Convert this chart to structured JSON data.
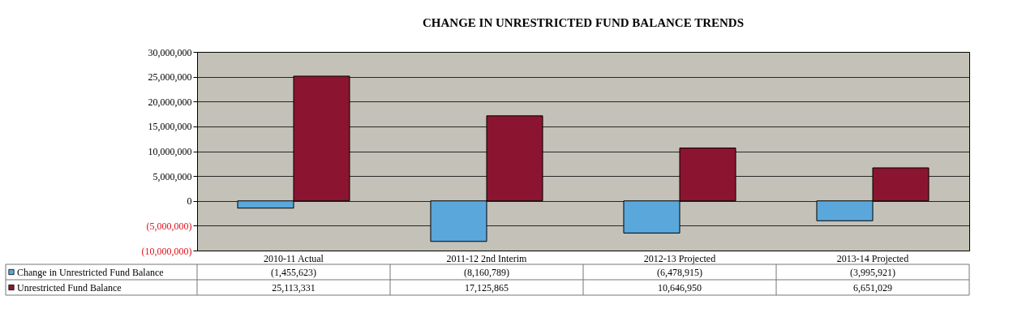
{
  "chart_data": {
    "type": "bar",
    "title": "CHANGE IN UNRESTRICTED FUND BALANCE TRENDS",
    "categories": [
      "2010-11 Actual",
      "2011-12 2nd Interim",
      "2012-13 Projected",
      "2013-14 Projected"
    ],
    "series": [
      {
        "name": "Change in Unrestricted Fund Balance",
        "color": "#5aa7dc",
        "values": [
          -1455623,
          -8160789,
          -6478915,
          -3995921
        ],
        "value_labels": [
          "(1,455,623)",
          "(8,160,789)",
          "(6,478,915)",
          "(3,995,921)"
        ]
      },
      {
        "name": "Unrestricted Fund Balance",
        "color": "#8b1530",
        "values": [
          25113331,
          17125865,
          10646950,
          6651029
        ],
        "value_labels": [
          "25,113,331",
          "17,125,865",
          "10,646,950",
          "6,651,029"
        ]
      }
    ],
    "ylim": [
      -10000000,
      30000000
    ],
    "yticks": [
      {
        "value": -10000000,
        "label": "(10,000,000)"
      },
      {
        "value": -5000000,
        "label": "(5,000,000)"
      },
      0,
      {
        "value": 5000000,
        "label": "5,000,000"
      },
      {
        "value": 10000000,
        "label": "10,000,000"
      },
      {
        "value": 15000000,
        "label": "15,000,000"
      },
      {
        "value": 20000000,
        "label": "20,000,000"
      },
      {
        "value": 25000000,
        "label": "25,000,000"
      },
      {
        "value": 30000000,
        "label": "30,000,000"
      }
    ],
    "grid": "y",
    "legend": "bottom left"
  }
}
